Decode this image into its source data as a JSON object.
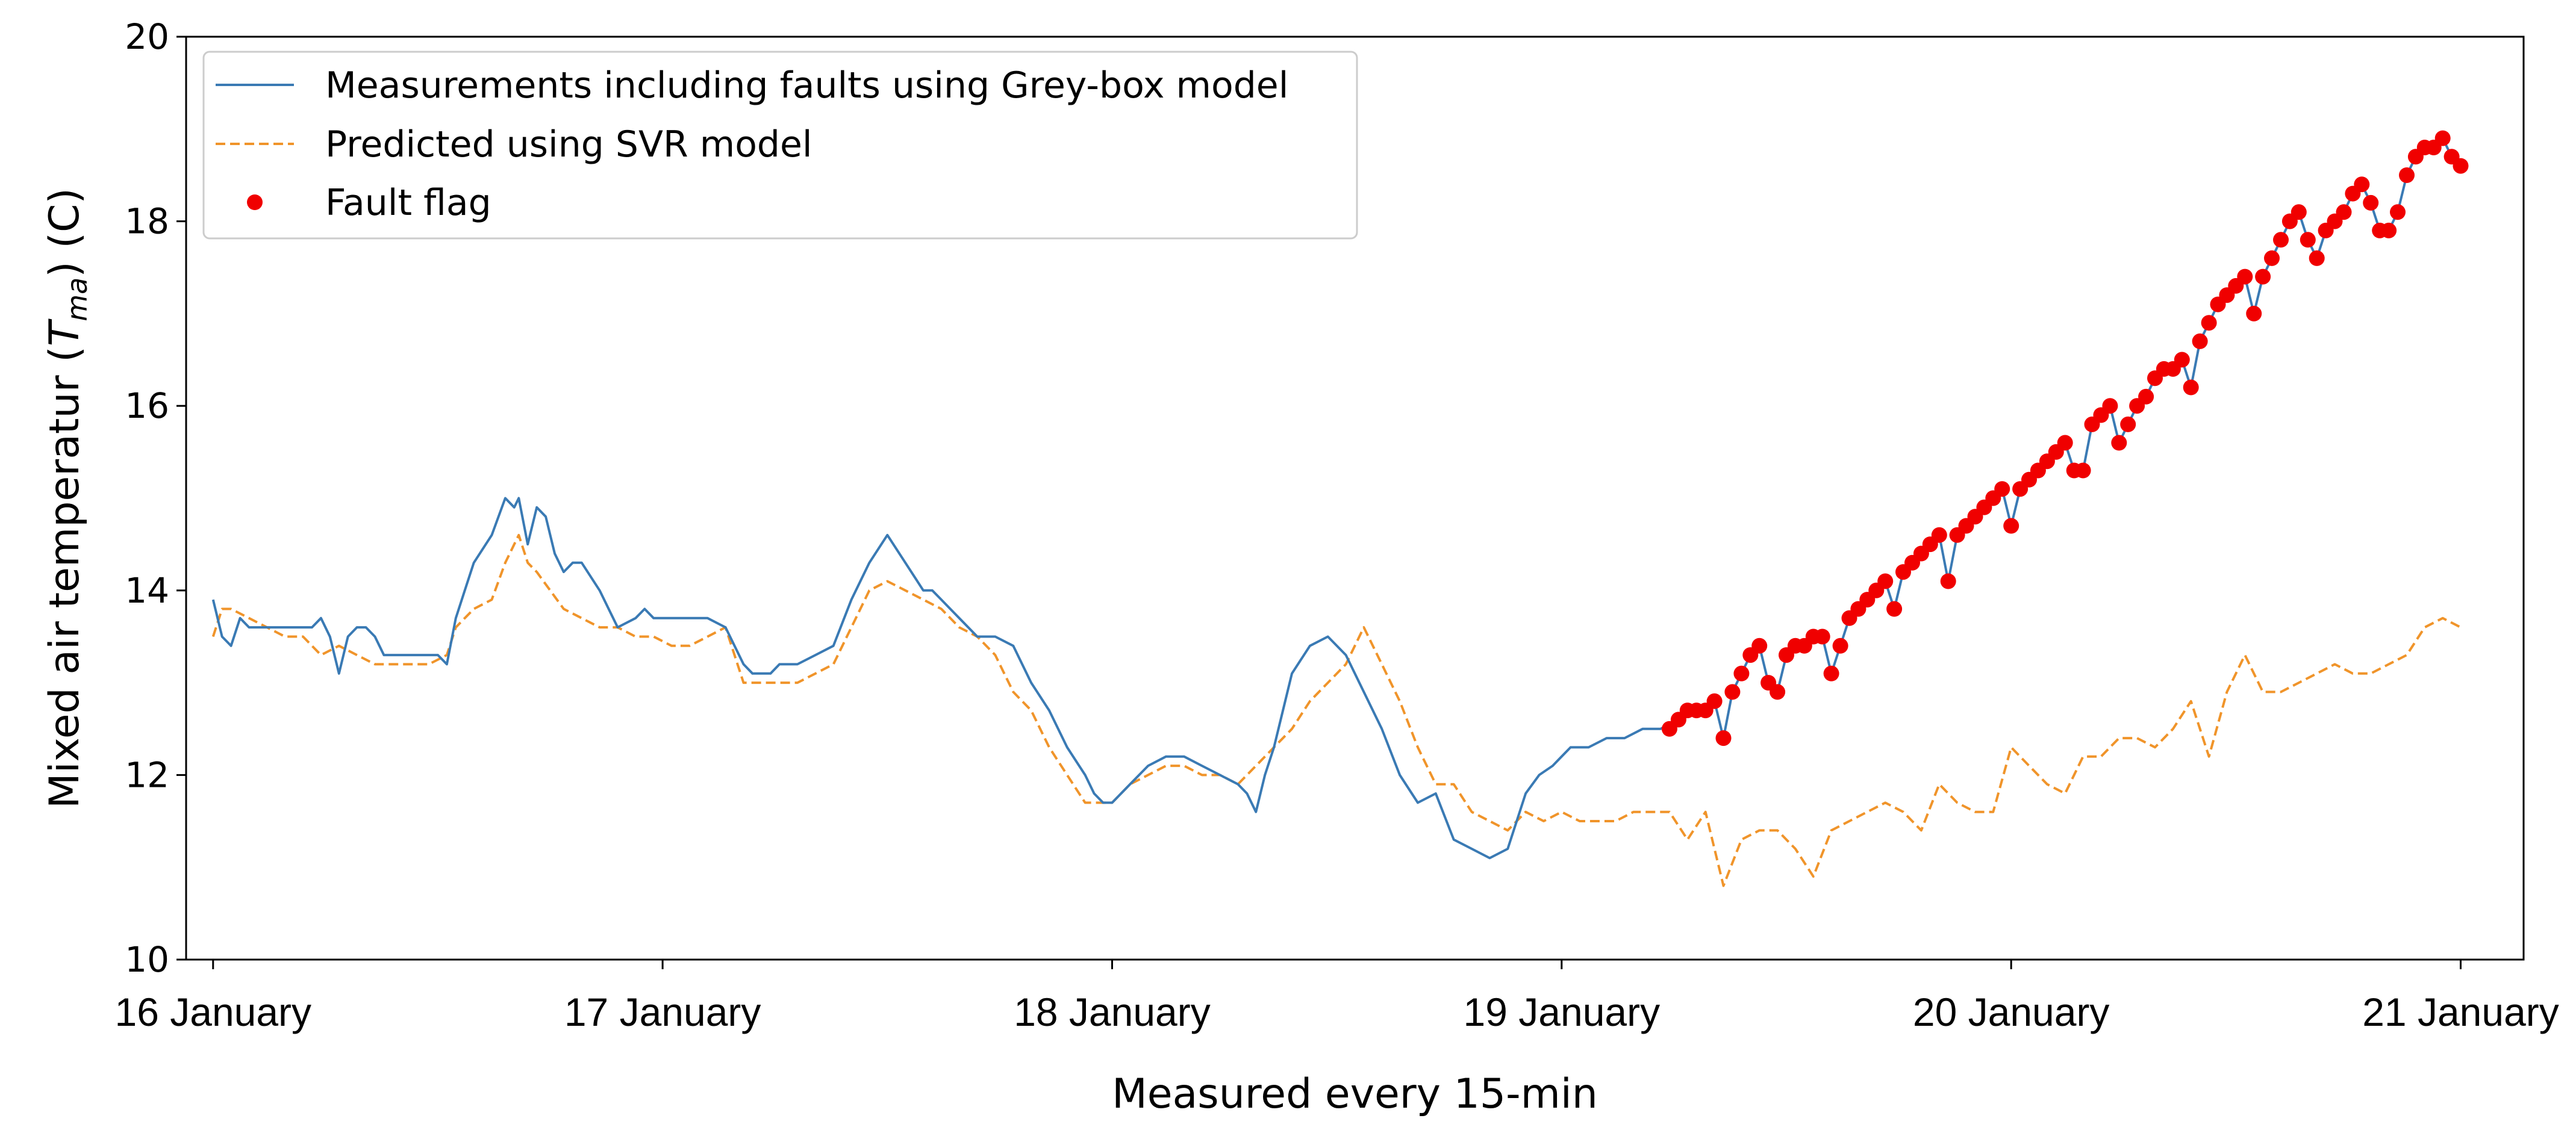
{
  "chart_data": {
    "type": "line",
    "xlabel": "Measured every 15-min",
    "ylabel": {
      "prefix": "Mixed air temperatur (",
      "symbol": "T",
      "subscript": "ma",
      "suffix": ") (C)"
    },
    "ylim": [
      10,
      20
    ],
    "yticks": [
      10,
      12,
      14,
      16,
      18,
      20
    ],
    "xlim": [
      -0.06,
      5.14
    ],
    "xticks": [
      {
        "value": 0,
        "label": "16 January"
      },
      {
        "value": 1,
        "label": "17 January"
      },
      {
        "value": 2,
        "label": "18 January"
      },
      {
        "value": 3,
        "label": "19 January"
      },
      {
        "value": 4,
        "label": "20 January"
      },
      {
        "value": 5,
        "label": "21 January"
      }
    ],
    "grid": false,
    "legend": {
      "position": "top-left",
      "entries": [
        {
          "label": "Measurements including faults using Grey-box model",
          "style": "solid-line",
          "color": "#3a7ab4"
        },
        {
          "label": "Predicted using SVR model",
          "style": "dashed-line",
          "color": "#f0942a"
        },
        {
          "label": "Fault flag",
          "style": "marker",
          "color": "#f00000"
        }
      ]
    },
    "series": [
      {
        "name": "Measurements including faults using Grey-box model",
        "style": "solid",
        "color": "#3a7ab4",
        "x": [
          0.0,
          0.02,
          0.04,
          0.06,
          0.08,
          0.1,
          0.14,
          0.18,
          0.22,
          0.24,
          0.26,
          0.28,
          0.3,
          0.32,
          0.34,
          0.36,
          0.38,
          0.42,
          0.46,
          0.5,
          0.52,
          0.54,
          0.56,
          0.58,
          0.62,
          0.65,
          0.67,
          0.68,
          0.7,
          0.72,
          0.74,
          0.76,
          0.78,
          0.8,
          0.82,
          0.86,
          0.9,
          0.94,
          0.96,
          0.98,
          1.0,
          1.02,
          1.06,
          1.1,
          1.14,
          1.18,
          1.2,
          1.22,
          1.24,
          1.26,
          1.3,
          1.34,
          1.38,
          1.42,
          1.46,
          1.5,
          1.54,
          1.58,
          1.6,
          1.62,
          1.64,
          1.66,
          1.7,
          1.74,
          1.78,
          1.82,
          1.86,
          1.9,
          1.94,
          1.96,
          1.98,
          2.0,
          2.04,
          2.08,
          2.12,
          2.16,
          2.2,
          2.24,
          2.28,
          2.3,
          2.32,
          2.34,
          2.36,
          2.38,
          2.4,
          2.44,
          2.48,
          2.52,
          2.56,
          2.6,
          2.64,
          2.68,
          2.72,
          2.76,
          2.8,
          2.84,
          2.88,
          2.92,
          2.95,
          2.98,
          3.0,
          3.02,
          3.06,
          3.1,
          3.14,
          3.18,
          3.22,
          3.26
        ],
        "values": [
          13.9,
          13.5,
          13.4,
          13.7,
          13.6,
          13.6,
          13.6,
          13.6,
          13.6,
          13.7,
          13.5,
          13.1,
          13.5,
          13.6,
          13.6,
          13.5,
          13.3,
          13.3,
          13.3,
          13.3,
          13.2,
          13.7,
          14.0,
          14.3,
          14.6,
          15.0,
          14.9,
          15.0,
          14.5,
          14.9,
          14.8,
          14.4,
          14.2,
          14.3,
          14.3,
          14.0,
          13.6,
          13.7,
          13.8,
          13.7,
          13.7,
          13.7,
          13.7,
          13.7,
          13.6,
          13.2,
          13.1,
          13.1,
          13.1,
          13.2,
          13.2,
          13.3,
          13.4,
          13.9,
          14.3,
          14.6,
          14.3,
          14.0,
          14.0,
          13.9,
          13.8,
          13.7,
          13.5,
          13.5,
          13.4,
          13.0,
          12.7,
          12.3,
          12.0,
          11.8,
          11.7,
          11.7,
          11.9,
          12.1,
          12.2,
          12.2,
          12.1,
          12.0,
          11.9,
          11.8,
          11.6,
          12.0,
          12.3,
          12.7,
          13.1,
          13.4,
          13.5,
          13.3,
          12.9,
          12.5,
          12.0,
          11.7,
          11.8,
          11.3,
          11.2,
          11.1,
          11.2,
          11.8,
          12.0,
          12.1,
          12.2,
          12.3,
          12.3,
          12.4,
          12.4,
          12.5,
          12.5,
          12.6
        ]
      },
      {
        "name": "Predicted using SVR model",
        "style": "dashed",
        "color": "#f0942a",
        "x": [
          0.0,
          0.02,
          0.04,
          0.08,
          0.12,
          0.16,
          0.2,
          0.24,
          0.28,
          0.32,
          0.36,
          0.4,
          0.44,
          0.48,
          0.52,
          0.54,
          0.56,
          0.58,
          0.62,
          0.65,
          0.68,
          0.7,
          0.72,
          0.75,
          0.78,
          0.82,
          0.86,
          0.9,
          0.94,
          0.98,
          1.02,
          1.06,
          1.1,
          1.14,
          1.18,
          1.22,
          1.26,
          1.3,
          1.34,
          1.38,
          1.42,
          1.46,
          1.5,
          1.54,
          1.58,
          1.62,
          1.66,
          1.7,
          1.74,
          1.78,
          1.82,
          1.86,
          1.9,
          1.94,
          1.96,
          1.98,
          2.0,
          2.04,
          2.08,
          2.12,
          2.16,
          2.2,
          2.24,
          2.28,
          2.32,
          2.36,
          2.4,
          2.44,
          2.48,
          2.52,
          2.56,
          2.6,
          2.64,
          2.68,
          2.72,
          2.76,
          2.8,
          2.84,
          2.88,
          2.92,
          2.96,
          3.0,
          3.04,
          3.08,
          3.12,
          3.16,
          3.2,
          3.24,
          3.28,
          3.32,
          3.36,
          3.4,
          3.44,
          3.48,
          3.52,
          3.56,
          3.6,
          3.64,
          3.68,
          3.72,
          3.76,
          3.8,
          3.84,
          3.88,
          3.92,
          3.96,
          4.0,
          4.04,
          4.08,
          4.12,
          4.16,
          4.2,
          4.24,
          4.28,
          4.32,
          4.36,
          4.4,
          4.44,
          4.48,
          4.52,
          4.56,
          4.6,
          4.64,
          4.68,
          4.72,
          4.76,
          4.8,
          4.84,
          4.88,
          4.92,
          4.96,
          5.0
        ],
        "values": [
          13.5,
          13.8,
          13.8,
          13.7,
          13.6,
          13.5,
          13.5,
          13.3,
          13.4,
          13.3,
          13.2,
          13.2,
          13.2,
          13.2,
          13.3,
          13.6,
          13.7,
          13.8,
          13.9,
          14.3,
          14.6,
          14.3,
          14.2,
          14.0,
          13.8,
          13.7,
          13.6,
          13.6,
          13.5,
          13.5,
          13.4,
          13.4,
          13.5,
          13.6,
          13.0,
          13.0,
          13.0,
          13.0,
          13.1,
          13.2,
          13.6,
          14.0,
          14.1,
          14.0,
          13.9,
          13.8,
          13.6,
          13.5,
          13.3,
          12.9,
          12.7,
          12.3,
          12.0,
          11.7,
          11.7,
          11.7,
          11.7,
          11.9,
          12.0,
          12.1,
          12.1,
          12.0,
          12.0,
          11.9,
          12.1,
          12.3,
          12.5,
          12.8,
          13.0,
          13.2,
          13.6,
          13.2,
          12.8,
          12.3,
          11.9,
          11.9,
          11.6,
          11.5,
          11.4,
          11.6,
          11.5,
          11.6,
          11.5,
          11.5,
          11.5,
          11.6,
          11.6,
          11.6,
          11.3,
          11.6,
          10.8,
          11.3,
          11.4,
          11.4,
          11.2,
          10.9,
          11.4,
          11.5,
          11.6,
          11.7,
          11.6,
          11.4,
          11.9,
          11.7,
          11.6,
          11.6,
          12.3,
          12.1,
          11.9,
          11.8,
          12.2,
          12.2,
          12.4,
          12.4,
          12.3,
          12.5,
          12.8,
          12.2,
          12.9,
          13.3,
          12.9,
          12.9,
          13.0,
          13.1,
          13.2,
          13.1,
          13.1,
          13.2,
          13.3,
          13.6,
          13.7,
          13.6
        ]
      },
      {
        "name": "Fault flag",
        "style": "marker",
        "color": "#f00000",
        "x": [
          3.24,
          3.26,
          3.28,
          3.3,
          3.32,
          3.34,
          3.36,
          3.38,
          3.4,
          3.42,
          3.44,
          3.46,
          3.48,
          3.5,
          3.52,
          3.54,
          3.56,
          3.58,
          3.6,
          3.62,
          3.64,
          3.66,
          3.68,
          3.7,
          3.72,
          3.74,
          3.76,
          3.78,
          3.8,
          3.82,
          3.84,
          3.86,
          3.88,
          3.9,
          3.92,
          3.94,
          3.96,
          3.98,
          4.0,
          4.02,
          4.04,
          4.06,
          4.08,
          4.1,
          4.12,
          4.14,
          4.16,
          4.18,
          4.2,
          4.22,
          4.24,
          4.26,
          4.28,
          4.3,
          4.32,
          4.34,
          4.36,
          4.38,
          4.4,
          4.42,
          4.44,
          4.46,
          4.48,
          4.5,
          4.52,
          4.54,
          4.56,
          4.58,
          4.6,
          4.62,
          4.64,
          4.66,
          4.68,
          4.7,
          4.72,
          4.74,
          4.76,
          4.78,
          4.8,
          4.82,
          4.84,
          4.86,
          4.88,
          4.9,
          4.92,
          4.94,
          4.96,
          4.98,
          5.0
        ],
        "values": [
          12.5,
          12.6,
          12.7,
          12.7,
          12.7,
          12.8,
          12.4,
          12.9,
          13.1,
          13.3,
          13.4,
          13.0,
          12.9,
          13.3,
          13.4,
          13.4,
          13.5,
          13.5,
          13.1,
          13.4,
          13.7,
          13.8,
          13.9,
          14.0,
          14.1,
          13.8,
          14.2,
          14.3,
          14.4,
          14.5,
          14.6,
          14.1,
          14.6,
          14.7,
          14.8,
          14.9,
          15.0,
          15.1,
          14.7,
          15.1,
          15.2,
          15.3,
          15.4,
          15.5,
          15.6,
          15.3,
          15.3,
          15.8,
          15.9,
          16.0,
          15.6,
          15.8,
          16.0,
          16.1,
          16.3,
          16.4,
          16.4,
          16.5,
          16.2,
          16.7,
          16.9,
          17.1,
          17.2,
          17.3,
          17.4,
          17.0,
          17.4,
          17.6,
          17.8,
          18.0,
          18.1,
          17.8,
          17.6,
          17.9,
          18.0,
          18.1,
          18.3,
          18.4,
          18.2,
          17.9,
          17.9,
          18.1,
          18.5,
          18.7,
          18.8,
          18.8,
          18.9,
          18.7,
          18.6
        ]
      }
    ]
  }
}
